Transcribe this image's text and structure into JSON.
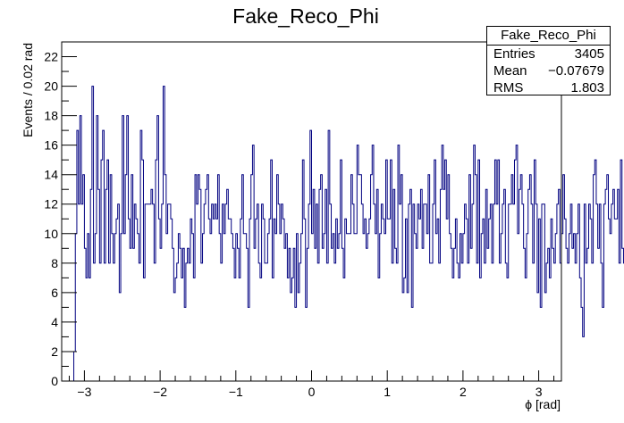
{
  "chart_data": {
    "type": "bar",
    "title": "Fake_Reco_Phi",
    "xlabel": "ϕ [rad]",
    "ylabel": "Events / 0.02 rad",
    "xlim": [
      -3.3,
      3.3
    ],
    "ylim": [
      0,
      23
    ],
    "bin_width": 0.02,
    "x_start": -3.14,
    "x_ticks": [
      -3,
      -2,
      -1,
      0,
      1,
      2,
      3
    ],
    "y_ticks": [
      0,
      2,
      4,
      6,
      8,
      10,
      12,
      14,
      16,
      18,
      20,
      22
    ],
    "values": [
      2,
      10,
      17,
      12,
      18,
      12,
      14,
      9,
      7,
      10,
      7,
      13,
      20,
      8,
      10,
      18,
      13,
      8,
      15,
      17,
      8,
      13,
      15,
      8,
      14,
      10,
      8,
      10,
      11,
      12,
      6,
      10,
      18,
      10,
      14,
      18,
      11,
      9,
      14,
      9,
      12,
      11,
      10,
      8,
      17,
      15,
      7,
      12,
      12,
      12,
      12,
      13,
      12,
      8,
      15,
      18,
      11,
      9,
      12,
      20,
      14,
      10,
      12,
      12,
      11,
      9,
      6,
      7,
      8,
      10,
      9,
      7,
      9,
      5,
      8,
      9,
      8,
      11,
      10,
      7,
      14,
      12,
      14,
      13,
      8,
      10,
      12,
      13,
      14,
      11,
      10,
      12,
      11,
      12,
      11,
      14,
      10,
      8,
      12,
      10,
      12,
      13,
      11,
      11,
      10,
      9,
      7,
      10,
      9,
      7,
      11,
      14,
      10,
      10,
      9,
      5,
      11,
      14,
      16,
      9,
      11,
      12,
      8,
      7,
      12,
      11,
      8,
      8,
      10,
      11,
      15,
      7,
      11,
      10,
      14,
      12,
      10,
      12,
      11,
      9,
      10,
      7,
      9,
      6,
      7,
      9,
      5,
      10,
      6,
      8,
      10,
      15,
      11,
      5,
      9,
      12,
      17,
      10,
      13,
      9,
      12,
      8,
      13,
      14,
      9,
      10,
      13,
      8,
      17,
      12,
      9,
      10,
      8,
      11,
      9,
      10,
      15,
      9,
      7,
      11,
      10,
      10,
      10,
      14,
      12,
      10,
      10,
      16,
      14,
      14,
      12,
      10,
      11,
      9,
      10,
      11,
      14,
      16,
      12,
      10,
      13,
      7,
      10,
      12,
      11,
      10,
      15,
      11,
      11,
      15,
      8,
      13,
      9,
      8,
      16,
      12,
      14,
      6,
      7,
      11,
      6,
      12,
      13,
      5,
      12,
      10,
      9,
      12,
      11,
      13,
      9,
      12,
      12,
      10,
      14,
      8,
      8,
      12,
      15,
      10,
      11,
      8,
      13,
      16,
      13,
      15,
      11,
      14,
      10,
      9,
      7,
      9,
      11,
      8,
      7,
      10,
      8,
      10,
      12,
      11,
      8,
      14,
      9,
      12,
      16,
      14,
      8,
      15,
      7,
      10,
      11,
      8,
      13,
      9,
      11,
      12,
      8,
      12,
      15,
      12,
      15,
      8,
      10,
      12,
      13,
      8,
      7,
      12,
      12,
      14,
      12,
      15,
      16,
      10,
      13,
      14,
      12,
      9,
      7,
      10,
      13,
      14,
      12,
      8,
      15,
      12,
      6,
      11,
      5,
      12,
      12,
      6,
      8,
      9,
      7,
      11,
      9,
      8,
      10,
      12,
      13,
      8,
      10,
      14,
      11,
      9,
      8,
      10,
      12,
      9,
      10,
      8,
      10,
      12,
      7,
      5,
      3,
      12,
      8,
      9,
      12,
      11,
      8,
      14,
      15,
      12,
      9,
      12,
      8,
      5,
      12,
      13,
      14,
      11,
      10,
      12,
      13,
      11,
      11,
      13,
      8,
      15,
      9,
      8,
      12,
      9,
      11,
      8,
      13,
      12,
      11,
      8,
      11,
      12,
      13,
      10,
      6,
      11,
      9,
      6,
      12,
      10,
      8,
      13,
      14,
      11,
      7,
      6,
      12,
      9,
      16,
      10,
      13,
      8,
      14,
      12,
      8,
      11,
      15,
      8,
      12,
      10,
      12,
      14,
      13,
      9,
      10,
      11,
      12,
      8,
      11,
      9,
      12,
      11,
      10,
      12,
      10,
      15,
      12,
      13,
      9,
      11,
      6,
      10,
      14,
      15,
      7,
      8,
      12,
      11,
      10,
      14,
      12,
      11,
      14,
      8,
      11,
      9,
      10,
      15,
      11,
      12,
      16,
      10,
      13,
      14,
      11,
      9,
      7,
      12,
      15,
      11,
      8,
      14,
      13,
      6,
      12,
      11,
      14,
      13,
      10,
      9,
      6,
      11,
      13,
      15,
      12,
      16,
      12,
      13,
      11,
      12,
      12,
      6,
      8,
      11,
      7,
      8,
      14,
      12,
      10,
      10,
      14,
      12,
      8,
      10,
      11,
      13,
      9,
      11,
      14,
      16,
      8,
      12,
      13,
      14,
      9,
      10,
      11,
      15,
      12,
      6,
      10,
      8,
      9,
      14,
      12,
      7,
      13,
      9,
      12,
      16,
      13,
      11,
      12,
      8,
      14,
      11,
      13,
      10,
      8,
      15,
      12,
      9,
      13,
      12,
      12,
      11,
      8,
      10,
      14,
      12,
      16,
      15,
      10,
      9,
      11,
      6,
      13,
      9,
      10,
      12,
      14,
      11,
      12,
      15,
      13,
      9,
      14,
      11,
      8,
      10,
      9,
      14,
      12,
      10,
      13,
      8,
      16,
      11,
      12,
      9,
      14,
      10,
      12,
      13,
      8,
      11,
      7,
      6,
      9,
      12,
      10,
      11,
      8,
      14,
      12,
      16,
      14,
      10,
      9,
      11,
      12,
      8,
      6,
      5,
      9,
      14,
      9,
      7,
      6,
      10,
      12,
      11,
      9,
      12,
      11,
      10,
      8,
      10,
      9,
      11,
      9,
      8,
      10,
      9,
      10,
      12,
      8,
      13,
      6,
      10,
      9,
      0
    ]
  },
  "stats_box": {
    "title": "Fake_Reco_Phi",
    "rows": [
      {
        "label": "Entries",
        "value": "3405"
      },
      {
        "label": "Mean",
        "value": "−0.07679"
      },
      {
        "label": "RMS",
        "value": "1.803"
      }
    ]
  },
  "colors": {
    "histogram_line": "#000080",
    "axis": "#000000"
  }
}
